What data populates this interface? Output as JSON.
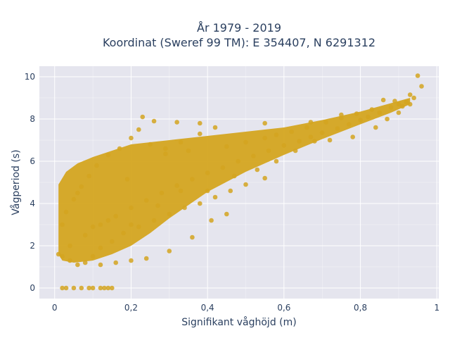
{
  "chart_data": {
    "type": "scatter",
    "title_line1": "År 1979 - 2019",
    "title_line2": "Koordinat (Sweref 99 TM): E 354407, N 6291312",
    "xlabel": "Signifikant våghöjd (m)",
    "ylabel": "Vågperiod (s)",
    "xlim": [
      -0.04,
      1.005
    ],
    "ylim": [
      -0.5,
      10.5
    ],
    "x_ticks": [
      0,
      0.2,
      0.4,
      0.6,
      0.8,
      1
    ],
    "x_tick_labels": [
      "0",
      "0,2",
      "0,4",
      "0,6",
      "0,8",
      "1"
    ],
    "y_ticks": [
      0,
      2,
      4,
      6,
      8,
      10
    ],
    "y_tick_labels": [
      "0",
      "2",
      "4",
      "6",
      "8",
      "10"
    ],
    "grid": true,
    "marker_color": "#D4A520",
    "plot_bg": "#E5E5EE",
    "series": [
      {
        "values": [
          [
            0.95,
            10.05
          ],
          [
            0.96,
            9.55
          ],
          [
            0.93,
            9.15
          ],
          [
            0.94,
            9.0
          ],
          [
            0.92,
            8.8
          ],
          [
            0.9,
            8.7
          ],
          [
            0.88,
            8.55
          ],
          [
            0.85,
            8.3
          ],
          [
            0.82,
            8.1
          ],
          [
            0.8,
            7.95
          ],
          [
            0.77,
            7.75
          ],
          [
            0.74,
            7.55
          ],
          [
            0.7,
            7.35
          ],
          [
            0.67,
            7.15
          ],
          [
            0.64,
            6.95
          ],
          [
            0.6,
            6.75
          ],
          [
            0.56,
            6.5
          ],
          [
            0.52,
            6.25
          ],
          [
            0.48,
            6.0
          ],
          [
            0.44,
            5.7
          ],
          [
            0.4,
            5.45
          ],
          [
            0.36,
            5.15
          ],
          [
            0.32,
            4.85
          ],
          [
            0.28,
            4.5
          ],
          [
            0.24,
            4.15
          ],
          [
            0.2,
            3.8
          ],
          [
            0.16,
            3.4
          ],
          [
            0.12,
            3.0
          ],
          [
            0.08,
            2.5
          ],
          [
            0.04,
            2.0
          ],
          [
            0.83,
            8.45
          ],
          [
            0.79,
            8.25
          ],
          [
            0.75,
            8.05
          ],
          [
            0.71,
            7.85
          ],
          [
            0.66,
            7.6
          ],
          [
            0.62,
            7.4
          ],
          [
            0.55,
            7.1
          ],
          [
            0.5,
            6.9
          ],
          [
            0.45,
            6.7
          ],
          [
            0.42,
            7.6
          ],
          [
            0.38,
            7.3
          ],
          [
            0.33,
            6.9
          ],
          [
            0.29,
            6.6
          ],
          [
            0.25,
            6.8
          ],
          [
            0.22,
            7.5
          ],
          [
            0.2,
            7.1
          ],
          [
            0.17,
            6.6
          ],
          [
            0.14,
            6.3
          ],
          [
            0.11,
            5.8
          ],
          [
            0.09,
            5.3
          ],
          [
            0.07,
            4.8
          ],
          [
            0.05,
            4.2
          ],
          [
            0.03,
            3.6
          ],
          [
            0.02,
            3.0
          ],
          [
            0.55,
            5.2
          ],
          [
            0.5,
            4.9
          ],
          [
            0.46,
            4.6
          ],
          [
            0.42,
            4.3
          ],
          [
            0.38,
            4.0
          ],
          [
            0.34,
            3.8
          ],
          [
            0.3,
            3.5
          ],
          [
            0.26,
            3.2
          ],
          [
            0.22,
            2.9
          ],
          [
            0.18,
            2.6
          ],
          [
            0.15,
            2.2
          ],
          [
            0.12,
            1.9
          ],
          [
            0.1,
            1.5
          ],
          [
            0.08,
            1.2
          ],
          [
            0.06,
            1.1
          ],
          [
            0.04,
            1.3
          ],
          [
            0.02,
            1.5
          ],
          [
            0.01,
            1.6
          ],
          [
            0.02,
            0.0
          ],
          [
            0.03,
            0.0
          ],
          [
            0.05,
            0.0
          ],
          [
            0.07,
            0.0
          ],
          [
            0.09,
            0.0
          ],
          [
            0.1,
            0.0
          ],
          [
            0.12,
            0.0
          ],
          [
            0.13,
            0.0
          ],
          [
            0.14,
            0.0
          ],
          [
            0.15,
            0.0
          ],
          [
            0.23,
            8.1
          ],
          [
            0.26,
            7.9
          ],
          [
            0.32,
            7.85
          ],
          [
            0.38,
            7.8
          ],
          [
            0.55,
            7.8
          ],
          [
            0.67,
            7.85
          ],
          [
            0.75,
            8.2
          ],
          [
            0.86,
            8.9
          ],
          [
            0.89,
            8.85
          ],
          [
            0.91,
            8.6
          ],
          [
            0.19,
            5.15
          ],
          [
            0.29,
            6.35
          ],
          [
            0.35,
            6.5
          ],
          [
            0.58,
            7.25
          ],
          [
            0.63,
            6.5
          ],
          [
            0.68,
            6.95
          ],
          [
            0.72,
            7.0
          ],
          [
            0.78,
            7.15
          ],
          [
            0.84,
            7.6
          ],
          [
            0.87,
            8.0
          ],
          [
            0.9,
            8.3
          ],
          [
            0.93,
            8.7
          ],
          [
            0.06,
            4.5
          ],
          [
            0.1,
            2.9
          ],
          [
            0.14,
            3.2
          ],
          [
            0.2,
            3.0
          ],
          [
            0.27,
            3.9
          ],
          [
            0.33,
            4.6
          ],
          [
            0.4,
            4.6
          ],
          [
            0.47,
            5.3
          ],
          [
            0.53,
            5.6
          ],
          [
            0.58,
            6.0
          ],
          [
            0.24,
            1.4
          ],
          [
            0.2,
            1.3
          ],
          [
            0.16,
            1.2
          ],
          [
            0.12,
            1.1
          ],
          [
            0.3,
            1.75
          ],
          [
            0.36,
            2.4
          ],
          [
            0.41,
            3.2
          ],
          [
            0.45,
            3.5
          ]
        ]
      }
    ]
  }
}
